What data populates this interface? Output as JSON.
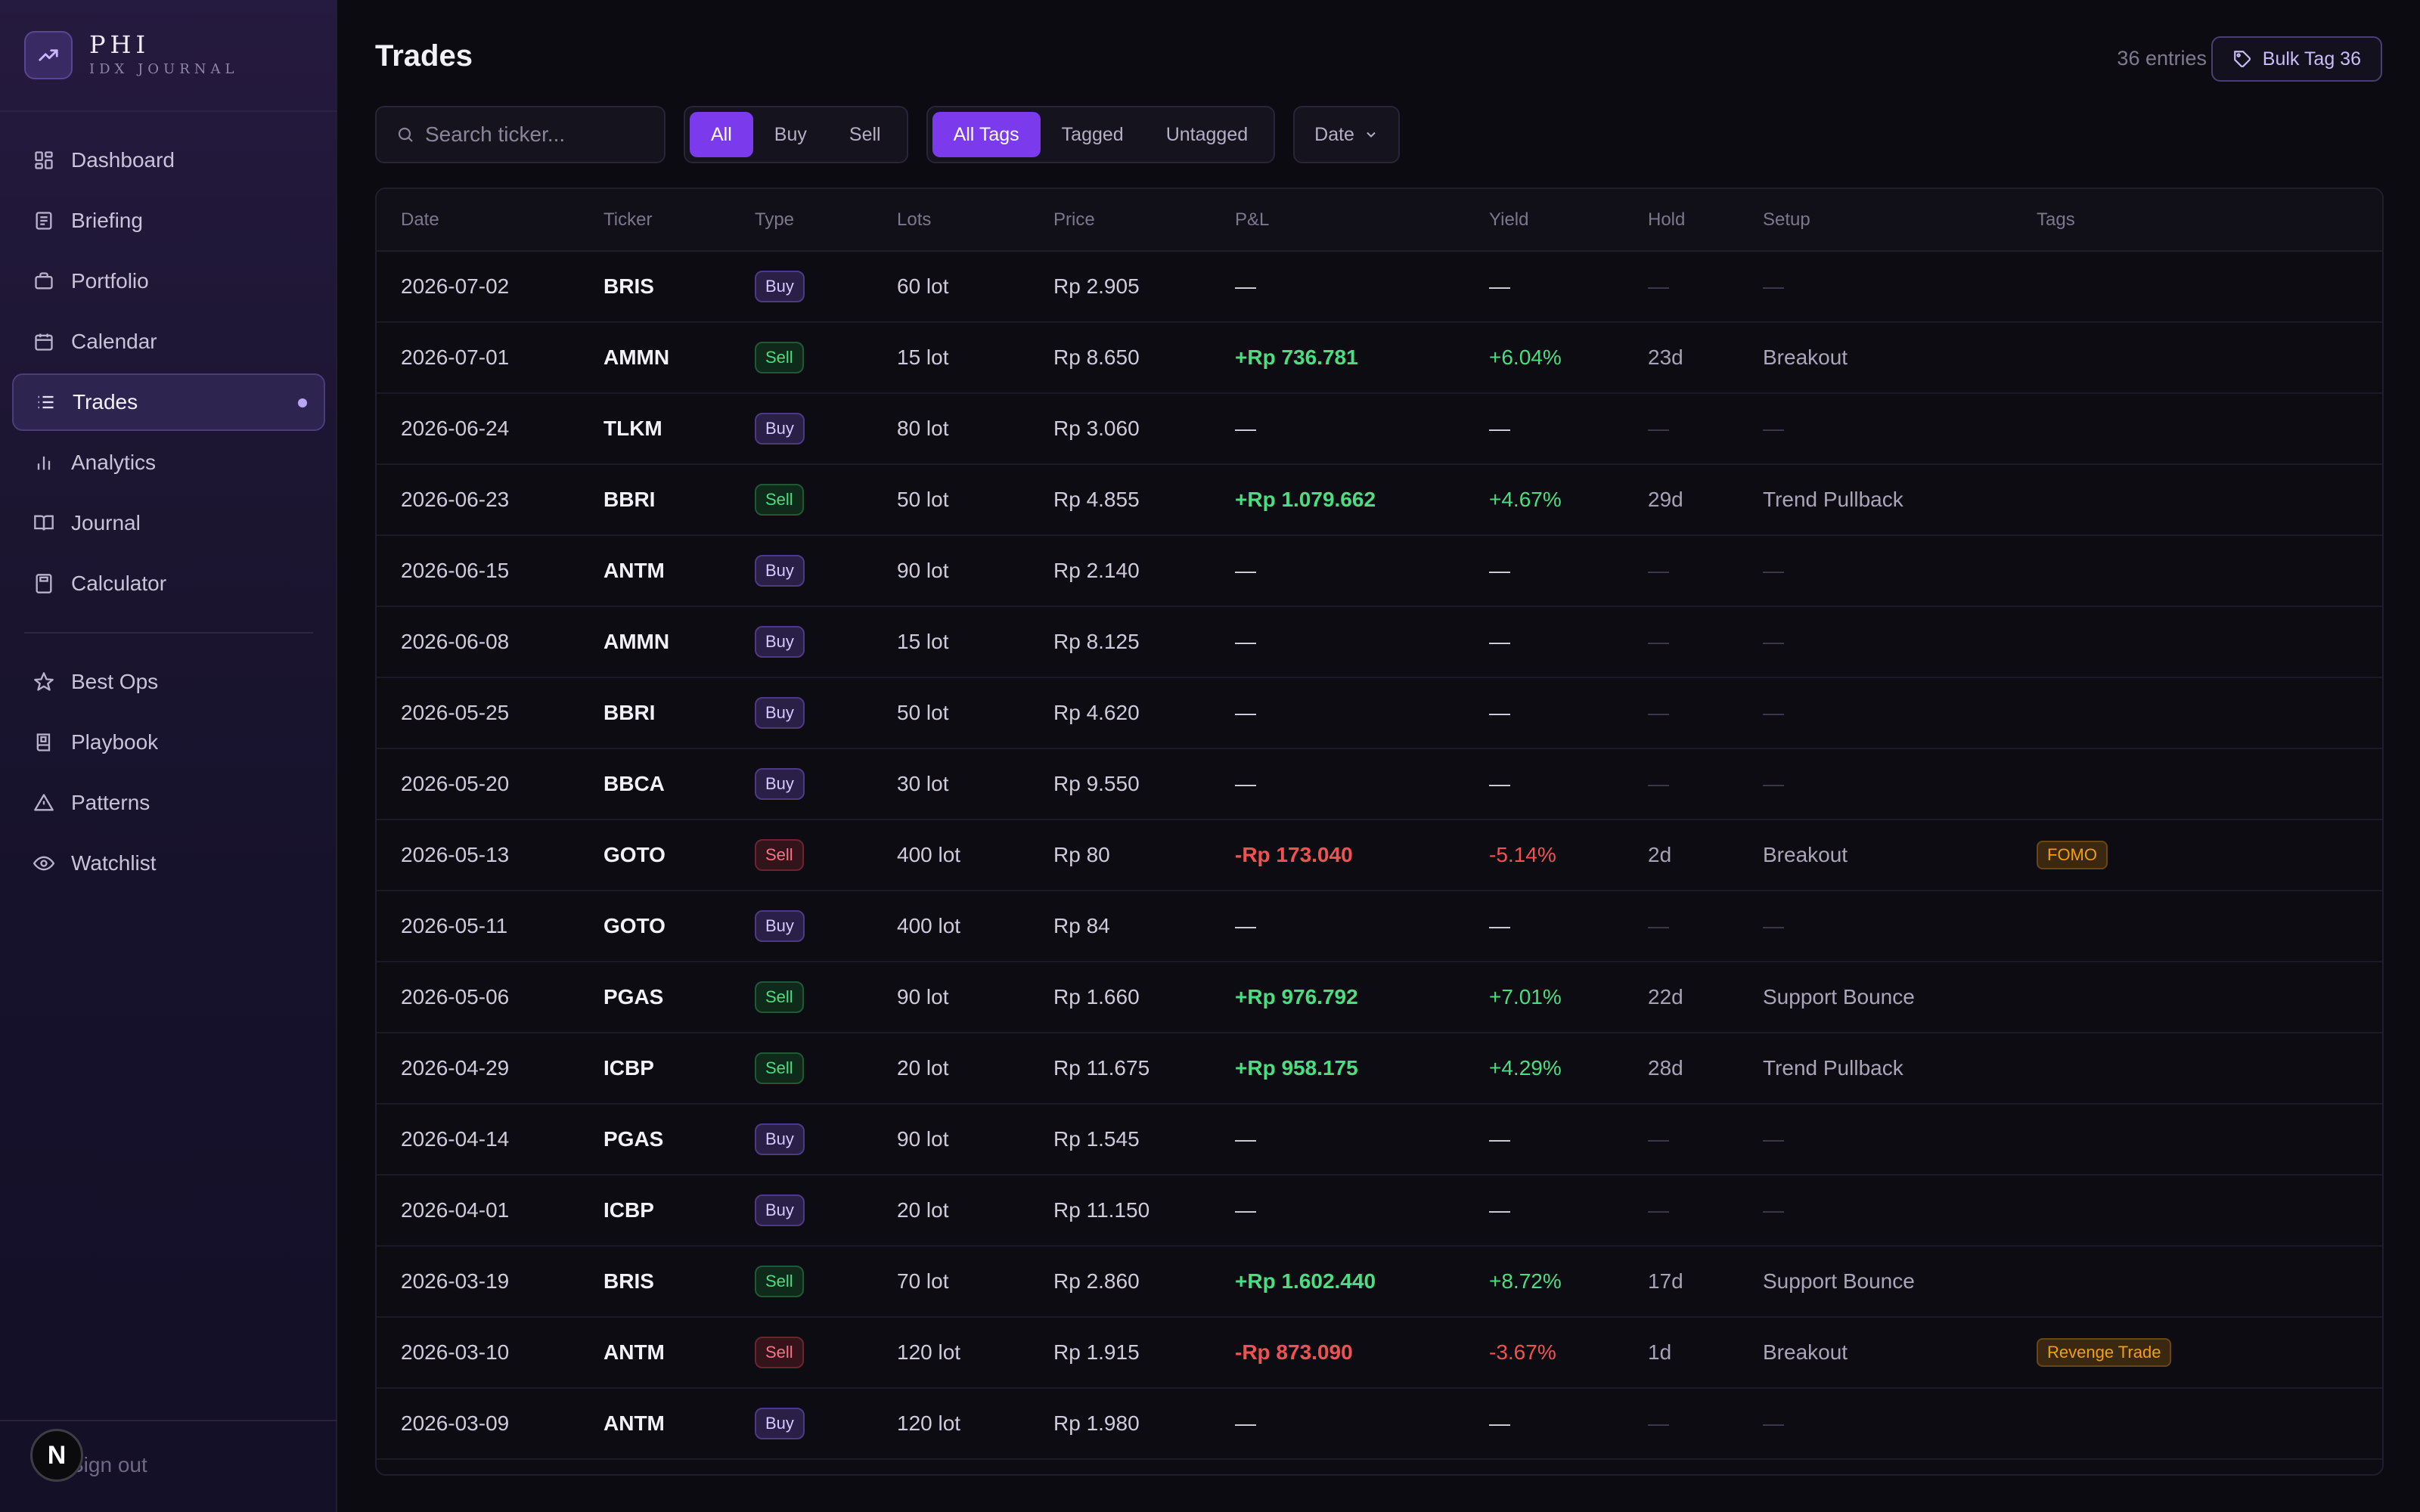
{
  "brand": {
    "name": "PHI",
    "subtitle": "IDX JOURNAL",
    "logo_icon": "trending-up-icon"
  },
  "nav": {
    "items": [
      {
        "label": "Dashboard",
        "icon": "dashboard-icon"
      },
      {
        "label": "Briefing",
        "icon": "newspaper-icon"
      },
      {
        "label": "Portfolio",
        "icon": "briefcase-icon"
      },
      {
        "label": "Calendar",
        "icon": "calendar-icon"
      },
      {
        "label": "Trades",
        "icon": "list-icon",
        "active": true
      },
      {
        "label": "Analytics",
        "icon": "bar-chart-icon"
      },
      {
        "label": "Journal",
        "icon": "book-open-icon"
      },
      {
        "label": "Calculator",
        "icon": "calculator-icon"
      }
    ],
    "secondary": [
      {
        "label": "Best Ops",
        "icon": "star-icon"
      },
      {
        "label": "Playbook",
        "icon": "book-icon"
      },
      {
        "label": "Patterns",
        "icon": "alert-triangle-icon"
      },
      {
        "label": "Watchlist",
        "icon": "eye-icon"
      }
    ],
    "signout_label": "Sign out",
    "badge_letter": "N"
  },
  "header": {
    "title": "Trades",
    "entries": "36 entries",
    "bulk_tag_label": "Bulk Tag 36"
  },
  "filters": {
    "search_placeholder": "Search ticker...",
    "search_value": "",
    "type_options": [
      "All",
      "Buy",
      "Sell"
    ],
    "type_selected": "All",
    "tag_options": [
      "All Tags",
      "Tagged",
      "Untagged"
    ],
    "tag_selected": "All Tags",
    "date_label": "Date"
  },
  "colors": {
    "accent": "#7c3aed",
    "positive": "#4ade80",
    "negative": "#f05252",
    "tag": "#f59e0b"
  },
  "table": {
    "columns": [
      "Date",
      "Ticker",
      "Type",
      "Lots",
      "Price",
      "P&L",
      "Yield",
      "Hold",
      "Setup",
      "Tags"
    ],
    "rows": [
      {
        "date": "2026-07-02",
        "ticker": "BRIS",
        "type": "Buy",
        "lots": "60 lot",
        "price": "Rp 2.905",
        "pl": "—",
        "yield": "—",
        "hold": "—",
        "setup": "—",
        "tags": ""
      },
      {
        "date": "2026-07-01",
        "ticker": "AMMN",
        "type": "Sell",
        "lots": "15 lot",
        "price": "Rp 8.650",
        "pl": "+Rp 736.781",
        "yield": "+6.04%",
        "hold": "23d",
        "setup": "Breakout",
        "tags": ""
      },
      {
        "date": "2026-06-24",
        "ticker": "TLKM",
        "type": "Buy",
        "lots": "80 lot",
        "price": "Rp 3.060",
        "pl": "—",
        "yield": "—",
        "hold": "—",
        "setup": "—",
        "tags": ""
      },
      {
        "date": "2026-06-23",
        "ticker": "BBRI",
        "type": "Sell",
        "lots": "50 lot",
        "price": "Rp 4.855",
        "pl": "+Rp 1.079.662",
        "yield": "+4.67%",
        "hold": "29d",
        "setup": "Trend Pullback",
        "tags": ""
      },
      {
        "date": "2026-06-15",
        "ticker": "ANTM",
        "type": "Buy",
        "lots": "90 lot",
        "price": "Rp 2.140",
        "pl": "—",
        "yield": "—",
        "hold": "—",
        "setup": "—",
        "tags": ""
      },
      {
        "date": "2026-06-08",
        "ticker": "AMMN",
        "type": "Buy",
        "lots": "15 lot",
        "price": "Rp 8.125",
        "pl": "—",
        "yield": "—",
        "hold": "—",
        "setup": "—",
        "tags": ""
      },
      {
        "date": "2026-05-25",
        "ticker": "BBRI",
        "type": "Buy",
        "lots": "50 lot",
        "price": "Rp 4.620",
        "pl": "—",
        "yield": "—",
        "hold": "—",
        "setup": "—",
        "tags": ""
      },
      {
        "date": "2026-05-20",
        "ticker": "BBCA",
        "type": "Buy",
        "lots": "30 lot",
        "price": "Rp 9.550",
        "pl": "—",
        "yield": "—",
        "hold": "—",
        "setup": "—",
        "tags": ""
      },
      {
        "date": "2026-05-13",
        "ticker": "GOTO",
        "type": "Sell",
        "lots": "400 lot",
        "price": "Rp 80",
        "pl": "-Rp 173.040",
        "yield": "-5.14%",
        "hold": "2d",
        "setup": "Breakout",
        "tags": "FOMO"
      },
      {
        "date": "2026-05-11",
        "ticker": "GOTO",
        "type": "Buy",
        "lots": "400 lot",
        "price": "Rp 84",
        "pl": "—",
        "yield": "—",
        "hold": "—",
        "setup": "—",
        "tags": ""
      },
      {
        "date": "2026-05-06",
        "ticker": "PGAS",
        "type": "Sell",
        "lots": "90 lot",
        "price": "Rp 1.660",
        "pl": "+Rp 976.792",
        "yield": "+7.01%",
        "hold": "22d",
        "setup": "Support Bounce",
        "tags": ""
      },
      {
        "date": "2026-04-29",
        "ticker": "ICBP",
        "type": "Sell",
        "lots": "20 lot",
        "price": "Rp 11.675",
        "pl": "+Rp 958.175",
        "yield": "+4.29%",
        "hold": "28d",
        "setup": "Trend Pullback",
        "tags": ""
      },
      {
        "date": "2026-04-14",
        "ticker": "PGAS",
        "type": "Buy",
        "lots": "90 lot",
        "price": "Rp 1.545",
        "pl": "—",
        "yield": "—",
        "hold": "—",
        "setup": "—",
        "tags": ""
      },
      {
        "date": "2026-04-01",
        "ticker": "ICBP",
        "type": "Buy",
        "lots": "20 lot",
        "price": "Rp 11.150",
        "pl": "—",
        "yield": "—",
        "hold": "—",
        "setup": "—",
        "tags": ""
      },
      {
        "date": "2026-03-19",
        "ticker": "BRIS",
        "type": "Sell",
        "lots": "70 lot",
        "price": "Rp 2.860",
        "pl": "+Rp 1.602.440",
        "yield": "+8.72%",
        "hold": "17d",
        "setup": "Support Bounce",
        "tags": ""
      },
      {
        "date": "2026-03-10",
        "ticker": "ANTM",
        "type": "Sell",
        "lots": "120 lot",
        "price": "Rp 1.915",
        "pl": "-Rp 873.090",
        "yield": "-3.67%",
        "hold": "1d",
        "setup": "Breakout",
        "tags": "Revenge Trade"
      },
      {
        "date": "2026-03-09",
        "ticker": "ANTM",
        "type": "Buy",
        "lots": "120 lot",
        "price": "Rp 1.980",
        "pl": "—",
        "yield": "—",
        "hold": "—",
        "setup": "—",
        "tags": ""
      }
    ]
  }
}
